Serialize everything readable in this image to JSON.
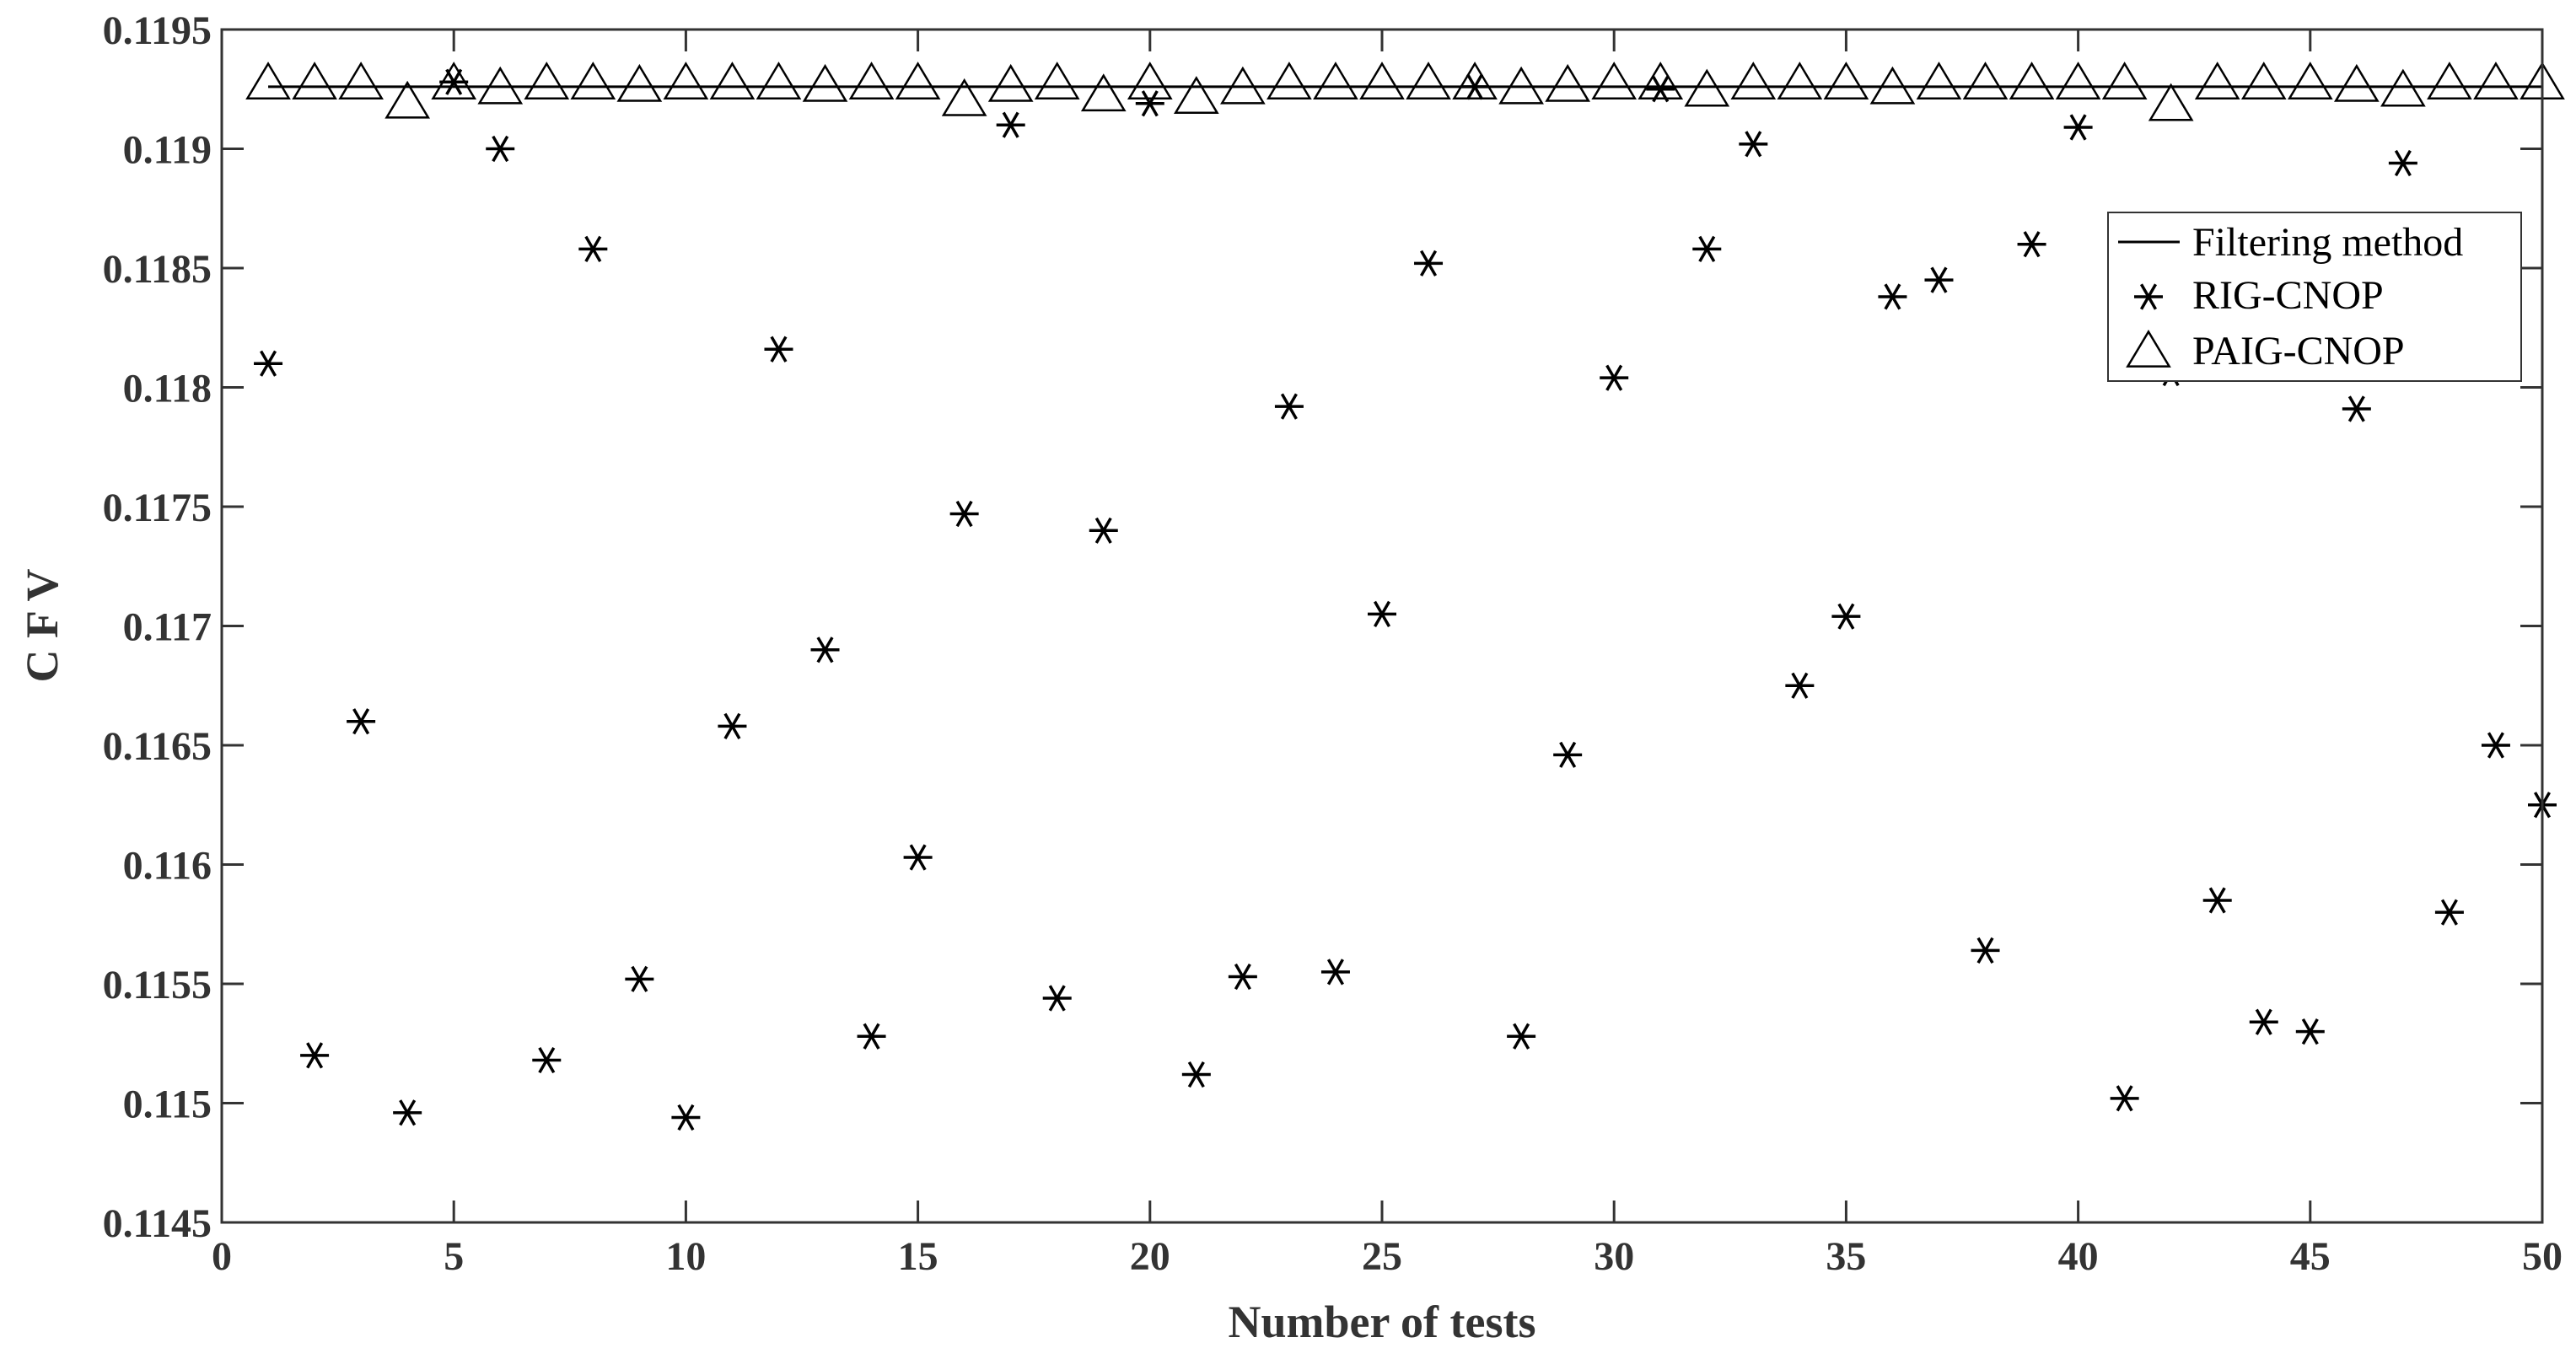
{
  "chart_data": {
    "type": "scatter",
    "xlabel": "Number of tests",
    "ylabel": "C F V",
    "xlim": [
      0,
      50
    ],
    "ylim": [
      0.1145,
      0.1195
    ],
    "xticks": [
      0,
      5,
      10,
      15,
      20,
      25,
      30,
      35,
      40,
      45,
      50
    ],
    "yticks": [
      0.1145,
      0.115,
      0.1155,
      0.116,
      0.1165,
      0.117,
      0.1175,
      0.118,
      0.1185,
      0.119,
      0.1195
    ],
    "ytick_labels": [
      "0.1145",
      "0.115",
      "0.1155",
      "0.116",
      "0.1165",
      "0.117",
      "0.1175",
      "0.118",
      "0.1185",
      "0.119",
      "0.1195"
    ],
    "grid": false,
    "legend_position": "top-right",
    "series": [
      {
        "name": "Filtering method",
        "style": "line",
        "x": [
          1,
          50
        ],
        "y": [
          0.11926,
          0.11926
        ]
      },
      {
        "name": "RIG-CNOP",
        "style": "asterisk",
        "x": [
          1,
          2,
          3,
          4,
          5,
          6,
          7,
          8,
          9,
          10,
          11,
          12,
          13,
          14,
          15,
          16,
          17,
          18,
          19,
          20,
          21,
          22,
          23,
          24,
          25,
          26,
          27,
          28,
          29,
          30,
          31,
          32,
          33,
          34,
          35,
          36,
          37,
          38,
          39,
          40,
          41,
          42,
          43,
          44,
          45,
          46,
          47,
          48,
          49,
          50
        ],
        "y": [
          0.1181,
          0.1152,
          0.1166,
          0.11496,
          0.11928,
          0.119,
          0.11518,
          0.11858,
          0.11552,
          0.11494,
          0.11658,
          0.11816,
          0.1169,
          0.11528,
          0.11603,
          0.11747,
          0.1191,
          0.11544,
          0.1174,
          0.11919,
          0.11512,
          0.11553,
          0.11792,
          0.11555,
          0.11705,
          0.11852,
          0.11926,
          0.11528,
          0.11646,
          0.11804,
          0.11925,
          0.11858,
          0.11902,
          0.11675,
          0.11704,
          0.11838,
          0.11845,
          0.11564,
          0.1186,
          0.11909,
          0.11502,
          0.11806,
          0.11585,
          0.11534,
          0.1153,
          0.11791,
          0.11894,
          0.1158,
          0.1165,
          0.11625
        ]
      },
      {
        "name": "PAIG-CNOP",
        "style": "triangle",
        "x": [
          1,
          2,
          3,
          4,
          5,
          6,
          7,
          8,
          9,
          10,
          11,
          12,
          13,
          14,
          15,
          16,
          17,
          18,
          19,
          20,
          21,
          22,
          23,
          24,
          25,
          26,
          27,
          28,
          29,
          30,
          31,
          32,
          33,
          34,
          35,
          36,
          37,
          38,
          39,
          40,
          41,
          42,
          43,
          44,
          45,
          46,
          47,
          48,
          49,
          50
        ],
        "y": [
          0.11927,
          0.11927,
          0.11927,
          0.11919,
          0.11927,
          0.11925,
          0.11927,
          0.11927,
          0.11926,
          0.11927,
          0.11927,
          0.11927,
          0.11926,
          0.11927,
          0.11927,
          0.1192,
          0.11926,
          0.11927,
          0.11922,
          0.11927,
          0.11921,
          0.11925,
          0.11927,
          0.11927,
          0.11927,
          0.11927,
          0.11927,
          0.11925,
          0.11926,
          0.11927,
          0.11927,
          0.11924,
          0.11927,
          0.11927,
          0.11927,
          0.11925,
          0.11927,
          0.11927,
          0.11927,
          0.11927,
          0.11927,
          0.11918,
          0.11927,
          0.11927,
          0.11927,
          0.11926,
          0.11924,
          0.11927,
          0.11927,
          0.11927
        ]
      }
    ]
  }
}
